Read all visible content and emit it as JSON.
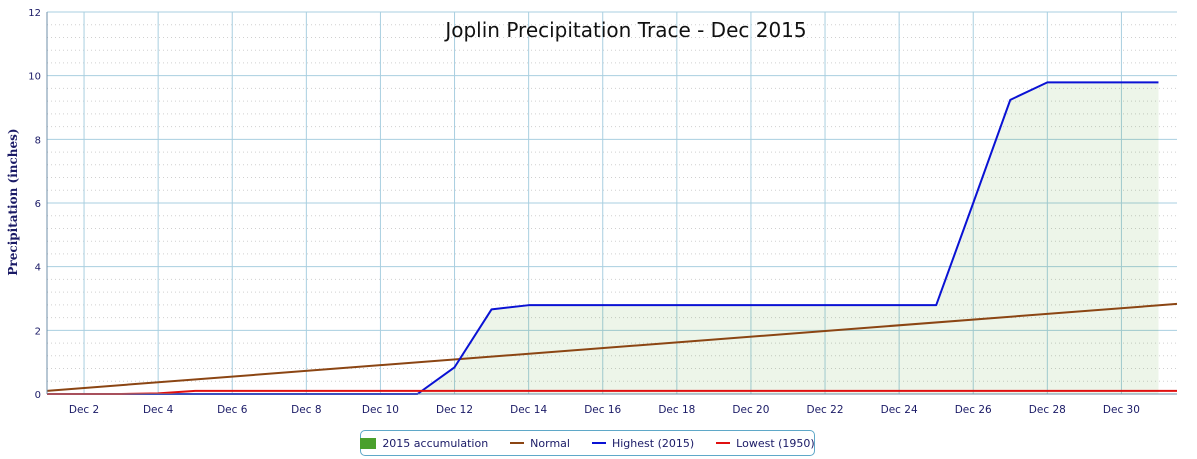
{
  "chart_data": {
    "type": "line",
    "title": "Joplin Precipitation Trace - Dec 2015",
    "xlabel": "",
    "ylabel": "Precipitation (inches)",
    "ylim": [
      0,
      12
    ],
    "yticks": [
      0,
      2,
      4,
      6,
      8,
      10,
      12
    ],
    "xlim": [
      1,
      31.5
    ],
    "xticks": [
      2,
      4,
      6,
      8,
      10,
      12,
      14,
      16,
      18,
      20,
      22,
      24,
      26,
      28,
      30
    ],
    "xtick_labels": [
      "Dec 2",
      "Dec 4",
      "Dec 6",
      "Dec 8",
      "Dec 10",
      "Dec 12",
      "Dec 14",
      "Dec 16",
      "Dec 18",
      "Dec 20",
      "Dec 22",
      "Dec 24",
      "Dec 26",
      "Dec 28",
      "Dec 30"
    ],
    "grid": true,
    "legend_position": "bottom",
    "series": [
      {
        "name": "2015 accumulation",
        "kind": "area",
        "color": "#4aa02c",
        "x": [
          1,
          2,
          3,
          4,
          5,
          6,
          7,
          8,
          9,
          10,
          11,
          12,
          13,
          14,
          15,
          16,
          17,
          18,
          19,
          20,
          21,
          22,
          23,
          24,
          25,
          26,
          27,
          28,
          29,
          30,
          31
        ],
        "y": [
          0,
          0,
          0,
          0,
          0,
          0,
          0,
          0,
          0,
          0,
          0,
          0.84,
          2.66,
          2.79,
          2.79,
          2.79,
          2.79,
          2.79,
          2.79,
          2.79,
          2.79,
          2.79,
          2.79,
          2.79,
          2.79,
          6.0,
          9.24,
          9.79,
          9.79,
          9.79,
          9.79
        ]
      },
      {
        "name": "Normal",
        "kind": "line",
        "color": "#8b4513",
        "x": [
          1,
          31.5
        ],
        "y": [
          0.1,
          2.83
        ]
      },
      {
        "name": "Highest (2015)",
        "kind": "line",
        "color": "#0a12d4",
        "x": [
          1,
          2,
          3,
          4,
          5,
          6,
          7,
          8,
          9,
          10,
          11,
          12,
          13,
          14,
          15,
          16,
          17,
          18,
          19,
          20,
          21,
          22,
          23,
          24,
          25,
          26,
          27,
          28,
          29,
          30,
          31
        ],
        "y": [
          0,
          0,
          0,
          0,
          0,
          0,
          0,
          0,
          0,
          0,
          0,
          0.84,
          2.66,
          2.79,
          2.79,
          2.79,
          2.79,
          2.79,
          2.79,
          2.79,
          2.79,
          2.79,
          2.79,
          2.79,
          2.79,
          6.0,
          9.24,
          9.79,
          9.79,
          9.79,
          9.79
        ]
      },
      {
        "name": "Lowest (1950)",
        "kind": "line",
        "color": "#e01010",
        "x": [
          1,
          3,
          4,
          5,
          31.5
        ],
        "y": [
          0,
          0,
          0.02,
          0.1,
          0.1
        ]
      }
    ]
  },
  "legend": {
    "items": [
      {
        "label": "2015 accumulation",
        "color": "#4aa02c",
        "kind": "box"
      },
      {
        "label": "Normal",
        "color": "#8b4513",
        "kind": "line"
      },
      {
        "label": "Highest (2015)",
        "color": "#0a12d4",
        "kind": "line"
      },
      {
        "label": "Lowest (1950)",
        "color": "#e01010",
        "kind": "line"
      }
    ]
  }
}
